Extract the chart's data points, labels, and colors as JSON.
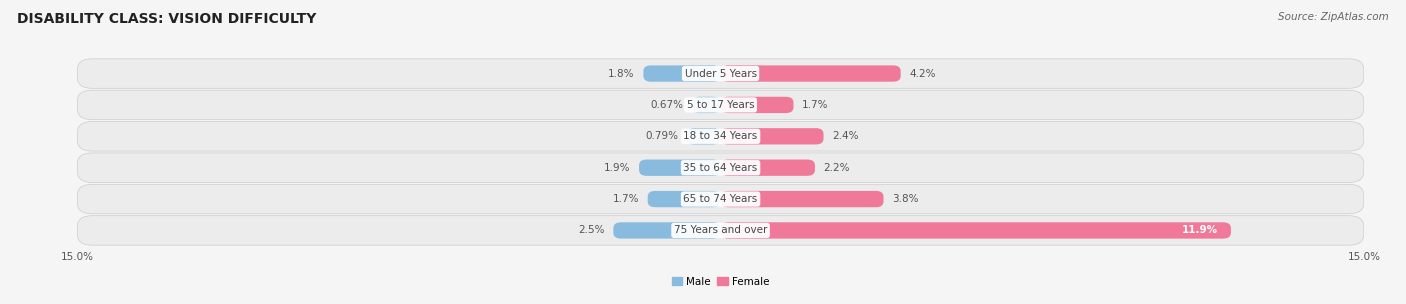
{
  "title": "DISABILITY CLASS: VISION DIFFICULTY",
  "source": "Source: ZipAtlas.com",
  "categories": [
    "Under 5 Years",
    "5 to 17 Years",
    "18 to 34 Years",
    "35 to 64 Years",
    "65 to 74 Years",
    "75 Years and over"
  ],
  "male_values": [
    1.8,
    0.67,
    0.79,
    1.9,
    1.7,
    2.5
  ],
  "female_values": [
    4.2,
    1.7,
    2.4,
    2.2,
    3.8,
    11.9
  ],
  "male_color": "#88bbdd",
  "female_color": "#f07899",
  "male_label": "Male",
  "female_label": "Female",
  "xlim": 15.0,
  "bar_height": 0.52,
  "background_color": "#f5f5f5",
  "row_bg_color": "#e8e8e8",
  "title_fontsize": 10,
  "label_fontsize": 7.5,
  "tick_fontsize": 7.5,
  "source_fontsize": 7.5,
  "cat_label_fontsize": 7.5
}
